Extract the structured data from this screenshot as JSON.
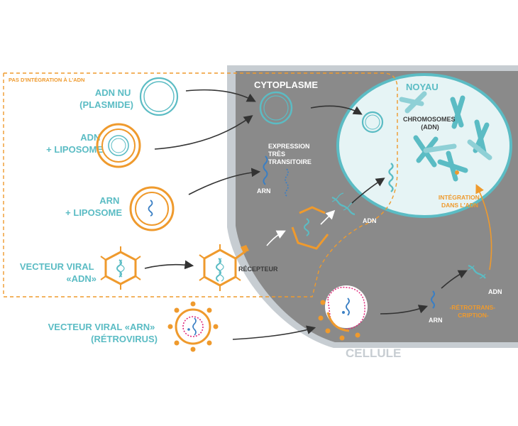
{
  "labels": {
    "no_integration": "PAS D'INTÉGRATION À L'ADN",
    "cytoplasm": "CYTOPLASME",
    "nucleus": "NOYAU",
    "cell": "CELLULE",
    "adn_nu_1": "ADN NU",
    "adn_nu_2": "(PLASMIDE)",
    "adn_lipo_1": "ADN",
    "adn_lipo_2": "+ LIPOSOME",
    "arn_lipo_1": "ARN",
    "arn_lipo_2": "+ LIPOSOME",
    "viral_adn_1": "VECTEUR VIRAL",
    "viral_adn_2": "«ADN»",
    "viral_arn_1": "VECTEUR VIRAL «ARN»",
    "viral_arn_2": "(RÉTROVIRUS)",
    "expression_1": "EXPRESSION",
    "expression_2": "TRÈS",
    "expression_3": "TRANSITOIRE",
    "arn_cyto": "ARN",
    "adn_cyto": "ADN",
    "chromosomes_1": "CHROMOSOMES",
    "chromosomes_2": "(ADN)",
    "integration_1": "INTÉGRATION",
    "integration_2": "DANS L'ADN",
    "receptor": "RÉCEPTEUR",
    "arn_retro": "ARN",
    "adn_retro": "ADN",
    "retro_1": "-RÉTROTRANS-",
    "retro_2": "CRIPTION-"
  },
  "colors": {
    "teal": "#5bbcc4",
    "orange": "#ef9a2d",
    "cytoplasm": "#8a8a8a",
    "membrane": "#c7cdd2",
    "nucleus_fill": "#e6f4f5",
    "magenta": "#e0287a",
    "blue": "#3a7fc4"
  }
}
